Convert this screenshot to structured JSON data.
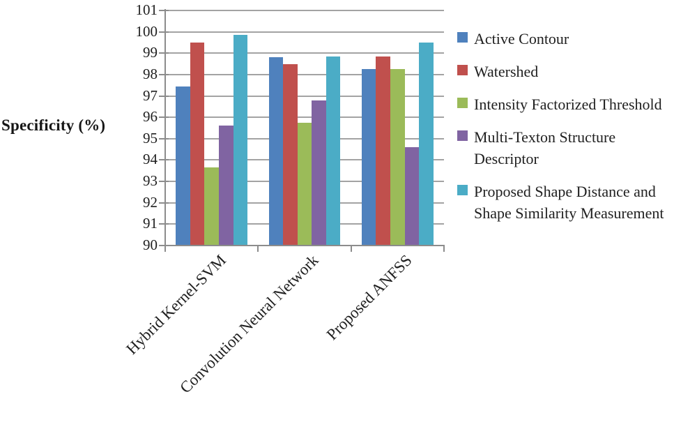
{
  "figure": {
    "background": "#ffffff"
  },
  "chart_data": {
    "type": "bar",
    "title": "",
    "xlabel": "",
    "ylabel": "Specificity (%)",
    "ylim": [
      90,
      101
    ],
    "ytick_step": 1,
    "yticks": [
      "101",
      "100",
      "99",
      "98",
      "97",
      "96",
      "95",
      "94",
      "93",
      "92",
      "91",
      "90"
    ],
    "grid": true,
    "legend_position": "right",
    "categories": [
      "Hybrid Kernel-SVM",
      "Convolution Neural Network",
      "Proposed ANFSS"
    ],
    "series": [
      {
        "name": "Active Contour",
        "color": "#4F81BD",
        "values": [
          97.45,
          98.8,
          98.25
        ]
      },
      {
        "name": "Watershed",
        "color": "#C0504D",
        "values": [
          99.5,
          98.5,
          98.85
        ]
      },
      {
        "name": "Intensity Factorized Threshold",
        "color": "#9BBB59",
        "values": [
          93.65,
          95.75,
          98.25
        ]
      },
      {
        "name": "Multi-Texton Structure Descriptor",
        "color": "#8064A2",
        "values": [
          95.6,
          96.8,
          94.6
        ]
      },
      {
        "name": "Proposed Shape Distance and Shape Similarity Measurement",
        "color": "#4BACC6",
        "values": [
          99.85,
          98.85,
          99.5
        ]
      }
    ],
    "style": {
      "gridline_color": "#a3a3a3",
      "axis_color": "#8c8c8c",
      "text_color": "#1f1f1f"
    }
  }
}
